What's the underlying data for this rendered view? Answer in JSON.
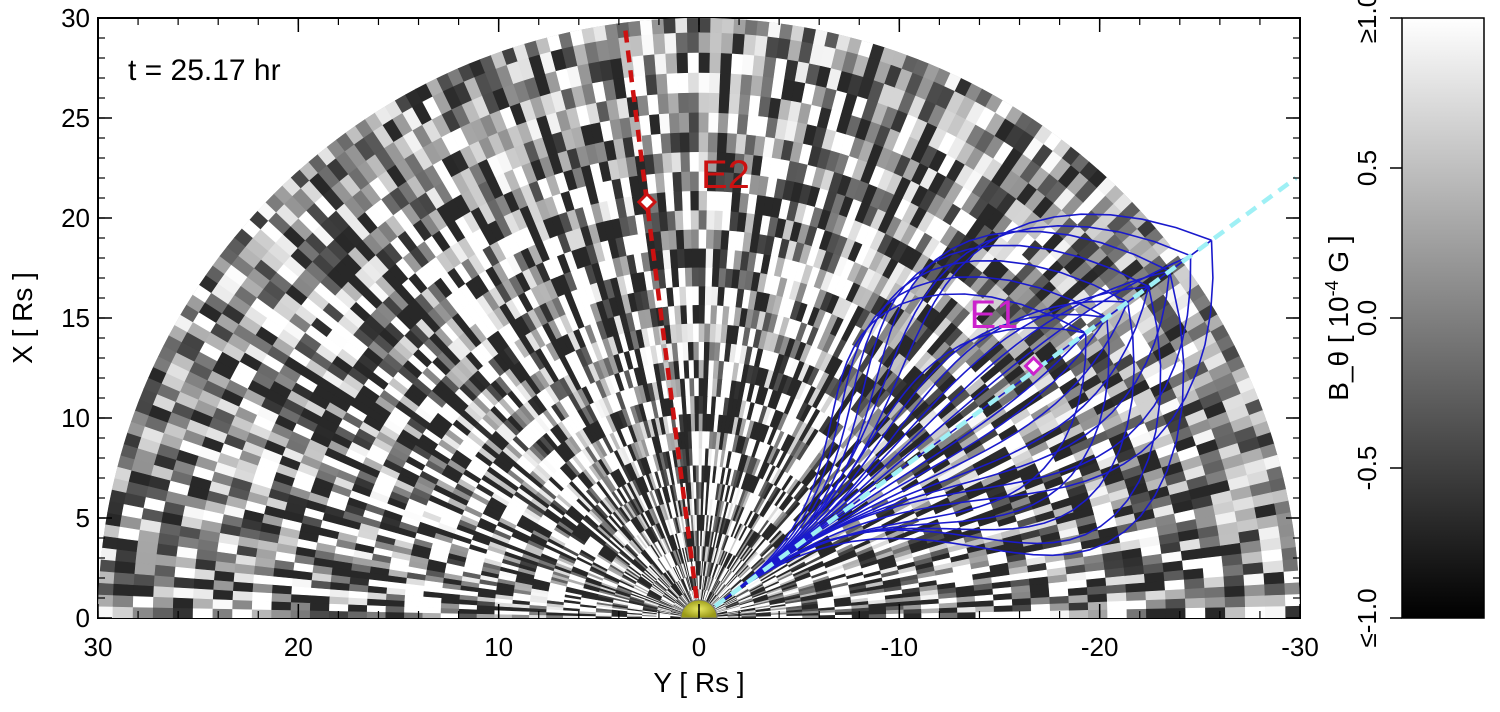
{
  "chart_data": {
    "type": "heatmap",
    "time_label": "t =  25.17 hr",
    "xlabel": "Y  [ Rs ]",
    "ylabel": "X  [ Rs ]",
    "x_axis_reversed": true,
    "xlim": [
      30,
      -30
    ],
    "ylim": [
      0,
      30
    ],
    "xticks": [
      "30",
      "20",
      "10",
      "0",
      "-10",
      "-20",
      "-30"
    ],
    "xtick_values": [
      30,
      20,
      10,
      0,
      -10,
      -20,
      -30
    ],
    "yticks": [
      "0",
      "5",
      "10",
      "15",
      "20",
      "25",
      "30"
    ],
    "ytick_values": [
      0,
      5,
      10,
      15,
      20,
      25,
      30
    ],
    "field_radius": 30,
    "field_description": "B_theta field in a half-disc of radius 30 Rs, grayscale from black (≤ -1.0) to white (≥ 1.0)",
    "colorbar": {
      "label": "B_θ  [ 10⁻⁴ G ]",
      "label_base": "B_θ  [ 10",
      "label_exp": "-4",
      "label_tail": " G ]",
      "range": [
        -1.0,
        1.0
      ],
      "tick_labels": [
        "≤-1.0",
        "-0.5",
        "0.0",
        "0.5",
        "≥1.0"
      ],
      "tick_values": [
        -1.0,
        -0.5,
        0.0,
        0.5,
        1.0
      ],
      "colormap": [
        "#000000",
        "#ffffff"
      ]
    },
    "lines": [
      {
        "name": "E2",
        "color": "#cc1111",
        "style": "dashed",
        "points": [
          [
            0,
            0
          ],
          [
            3.7,
            29.6
          ]
        ],
        "marker": {
          "y": 2.6,
          "x": 20.8
        }
      },
      {
        "name": "E1",
        "color": "#9ff0f5",
        "style": "dashed",
        "points": [
          [
            0,
            0
          ],
          [
            -29.8,
            22.0
          ]
        ],
        "marker": {
          "y": -16.7,
          "x": 12.6
        }
      }
    ],
    "annotations": [
      {
        "text": "E2",
        "y": -0.1,
        "x": 21.5,
        "color": "#cc1111"
      },
      {
        "text": "E1",
        "y": -13.5,
        "x": 14.5,
        "color": "#cc22cc"
      }
    ],
    "sun": {
      "y": 0,
      "x": 0,
      "radius": 0.9,
      "color": "#a8a820"
    },
    "field_lines_color": "#1a1acc",
    "highlight_color": "#cc22cc"
  }
}
